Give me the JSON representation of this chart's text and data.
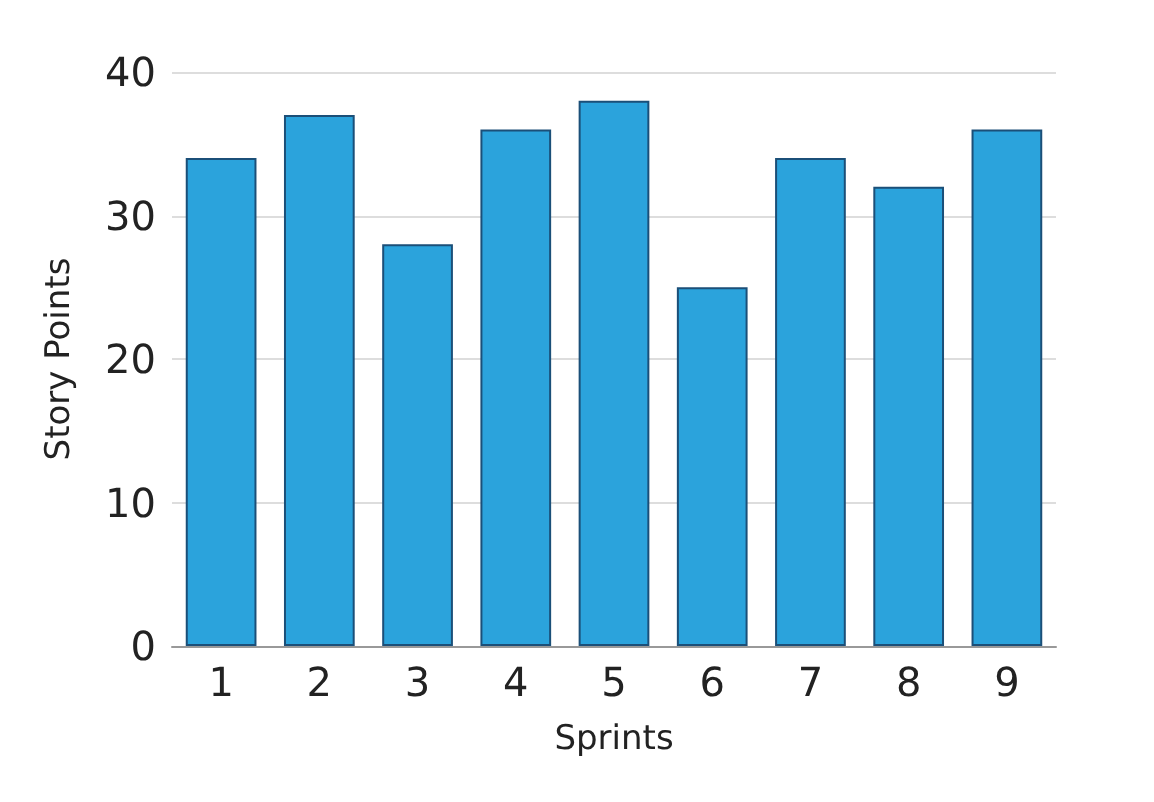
{
  "chart_data": {
    "type": "bar",
    "xlabel": "Sprints",
    "ylabel": "Story Points",
    "categories": [
      "1",
      "2",
      "3",
      "4",
      "5",
      "6",
      "7",
      "8",
      "9"
    ],
    "values": [
      34,
      37,
      28,
      36,
      38,
      25,
      34,
      32,
      36
    ],
    "color": "#2ba3dc",
    "ylim": [
      0,
      40
    ],
    "yticks": [
      0,
      10,
      20,
      30,
      40
    ],
    "grid": "y"
  }
}
